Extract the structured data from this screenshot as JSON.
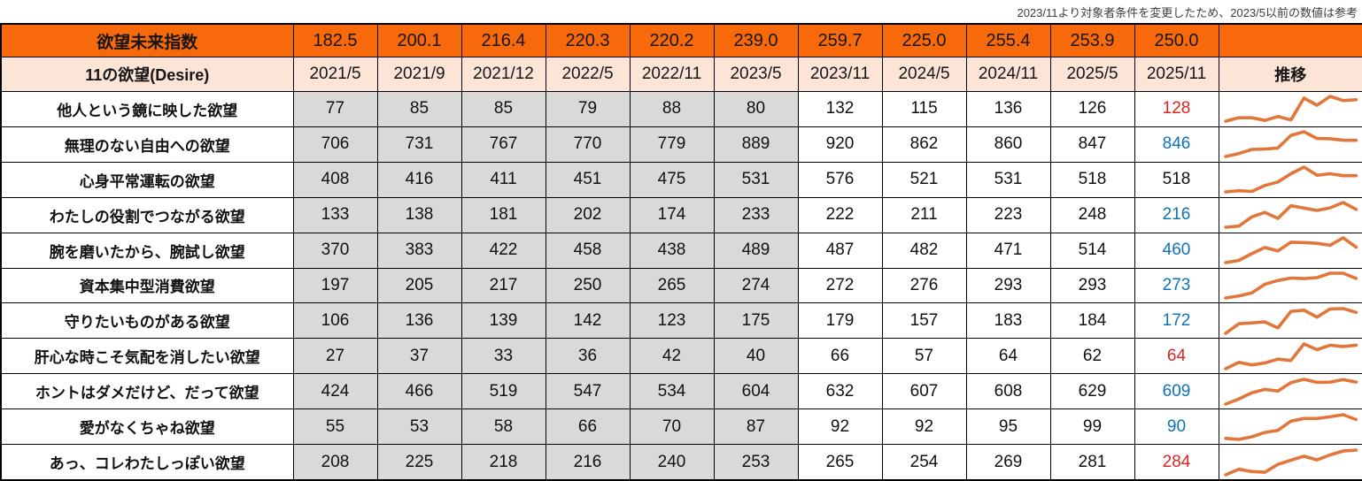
{
  "note": "2023/11より対象者条件を変更したため、2023/5以前の数値は参考",
  "header": {
    "title": "欲望未来指数",
    "subtitle_label": "11の欲望(Desire)",
    "trend_label": "推移"
  },
  "chart_data": {
    "type": "table",
    "title": "欲望未来指数",
    "categories": [
      "2021/5",
      "2021/9",
      "2021/12",
      "2022/5",
      "2022/11",
      "2023/5",
      "2023/11",
      "2024/5",
      "2024/11",
      "2025/5",
      "2025/11"
    ],
    "index_values": [
      "182.5",
      "200.1",
      "216.4",
      "220.3",
      "220.2",
      "239.0",
      "259.7",
      "225.0",
      "255.4",
      "253.9",
      "250.0"
    ],
    "reference_columns_count": 6,
    "sparkline_note": "each row has an orange min-max scaled line sparkline in the trend column",
    "series": [
      {
        "name": "他人という鏡に映した欲望",
        "values": [
          77,
          85,
          85,
          79,
          88,
          80,
          132,
          115,
          136,
          126,
          128
        ],
        "last_value_color": "red"
      },
      {
        "name": "無理のない自由への欲望",
        "values": [
          706,
          731,
          767,
          770,
          779,
          889,
          920,
          862,
          860,
          847,
          846
        ],
        "last_value_color": "blue"
      },
      {
        "name": "心身平常運転の欲望",
        "values": [
          408,
          416,
          411,
          451,
          475,
          531,
          576,
          521,
          531,
          518,
          518
        ],
        "last_value_color": "black"
      },
      {
        "name": "わたしの役割でつながる欲望",
        "values": [
          133,
          138,
          181,
          202,
          174,
          233,
          222,
          211,
          223,
          248,
          216
        ],
        "last_value_color": "blue"
      },
      {
        "name": "腕を磨いたから、腕試し欲望",
        "values": [
          370,
          383,
          422,
          458,
          438,
          489,
          487,
          482,
          471,
          514,
          460
        ],
        "last_value_color": "blue"
      },
      {
        "name": "資本集中型消費欲望",
        "values": [
          197,
          205,
          217,
          250,
          265,
          274,
          272,
          276,
          293,
          293,
          273
        ],
        "last_value_color": "blue"
      },
      {
        "name": "守りたいものがある欲望",
        "values": [
          106,
          136,
          139,
          142,
          123,
          175,
          179,
          157,
          183,
          184,
          172
        ],
        "last_value_color": "blue"
      },
      {
        "name": "肝心な時こそ気配を消したい欲望",
        "values": [
          27,
          37,
          33,
          36,
          42,
          40,
          66,
          57,
          64,
          62,
          64
        ],
        "last_value_color": "red"
      },
      {
        "name": "ホントはダメだけど、だって欲望",
        "values": [
          424,
          466,
          519,
          547,
          534,
          604,
          632,
          607,
          608,
          629,
          609
        ],
        "last_value_color": "blue"
      },
      {
        "name": "愛がなくちゃね欲望",
        "values": [
          55,
          53,
          58,
          66,
          70,
          87,
          92,
          92,
          95,
          99,
          90
        ],
        "last_value_color": "blue"
      },
      {
        "name": "あっ、コレわたしっぽい欲望",
        "values": [
          208,
          225,
          218,
          216,
          240,
          253,
          265,
          254,
          269,
          281,
          284
        ],
        "last_value_color": "red"
      }
    ]
  },
  "colors": {
    "header_orange": "#F8690B",
    "header_peach": "#FCE4D6",
    "reference_gray": "#D9D9D9",
    "up_red": "#DF2420",
    "down_blue": "#0E72B8",
    "sparkline_orange": "#E2773C",
    "border_black": "#000000"
  }
}
